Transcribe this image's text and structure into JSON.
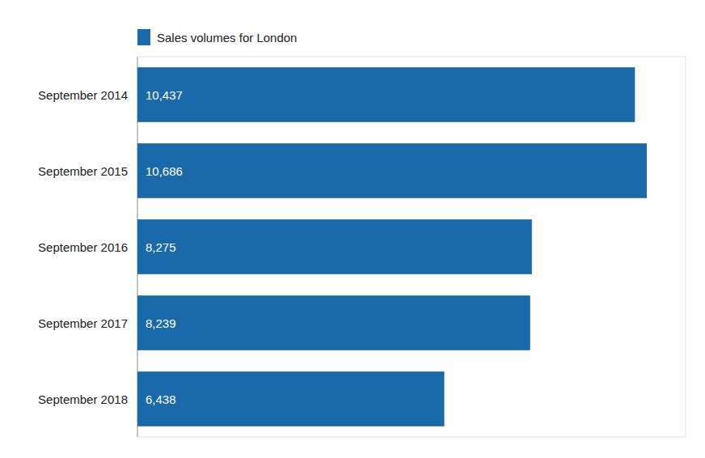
{
  "chart_data": {
    "type": "bar",
    "orientation": "horizontal",
    "categories": [
      "September 2014",
      "September 2015",
      "September 2016",
      "September 2017",
      "September 2018"
    ],
    "series": [
      {
        "name": "Sales volumes for London",
        "color": "#1a6aab",
        "values": [
          10437,
          10686,
          8275,
          8239,
          6438
        ],
        "value_labels": [
          "10,437",
          "10,686",
          "8,275",
          "8,239",
          "6,438"
        ]
      }
    ],
    "xlim": [
      0,
      11500
    ],
    "data_labels": true,
    "tick_labels": "y",
    "grid": false,
    "legend": "upper left"
  }
}
